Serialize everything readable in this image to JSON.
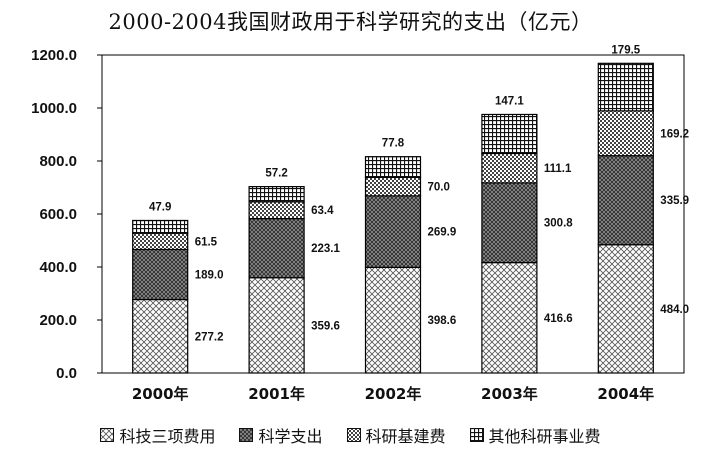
{
  "title": "2000-2004我国财政用于科学研究的支出（亿元）",
  "chart_data": {
    "type": "bar",
    "stacked": true,
    "title": "2000-2004我国财政用于科学研究的支出（亿元）",
    "categories": [
      "2000年",
      "2001年",
      "2002年",
      "2003年",
      "2004年"
    ],
    "series": [
      {
        "name": "科技三项费用",
        "values": [
          277.2,
          359.6,
          398.6,
          416.6,
          484.0
        ],
        "labels": [
          "277.2",
          "359.6",
          "398.6",
          "416.6",
          "484.0"
        ],
        "pattern": "cross-light"
      },
      {
        "name": "科学支出",
        "values": [
          189.0,
          223.1,
          269.9,
          300.8,
          335.9
        ],
        "labels": [
          "189.0",
          "223.1",
          "269.9",
          "300.8",
          "335.9"
        ],
        "pattern": "cross-dark"
      },
      {
        "name": "科研基建费",
        "values": [
          61.5,
          63.4,
          70.0,
          111.1,
          169.2
        ],
        "labels": [
          "61.5",
          "63.4",
          "70.0",
          "111.1",
          "169.2"
        ],
        "pattern": "checker"
      },
      {
        "name": "其他科研事业费",
        "values": [
          47.9,
          57.2,
          77.8,
          147.1,
          179.5
        ],
        "labels": [
          "47.9",
          "57.2",
          "77.8",
          "147.1",
          "179.5"
        ],
        "pattern": "grid"
      }
    ],
    "ylim": [
      0,
      1200
    ],
    "yticks": [
      "0.0",
      "200.0",
      "400.0",
      "600.0",
      "800.0",
      "1000.0",
      "1200.0"
    ],
    "grid": false,
    "legend_position": "bottom"
  }
}
